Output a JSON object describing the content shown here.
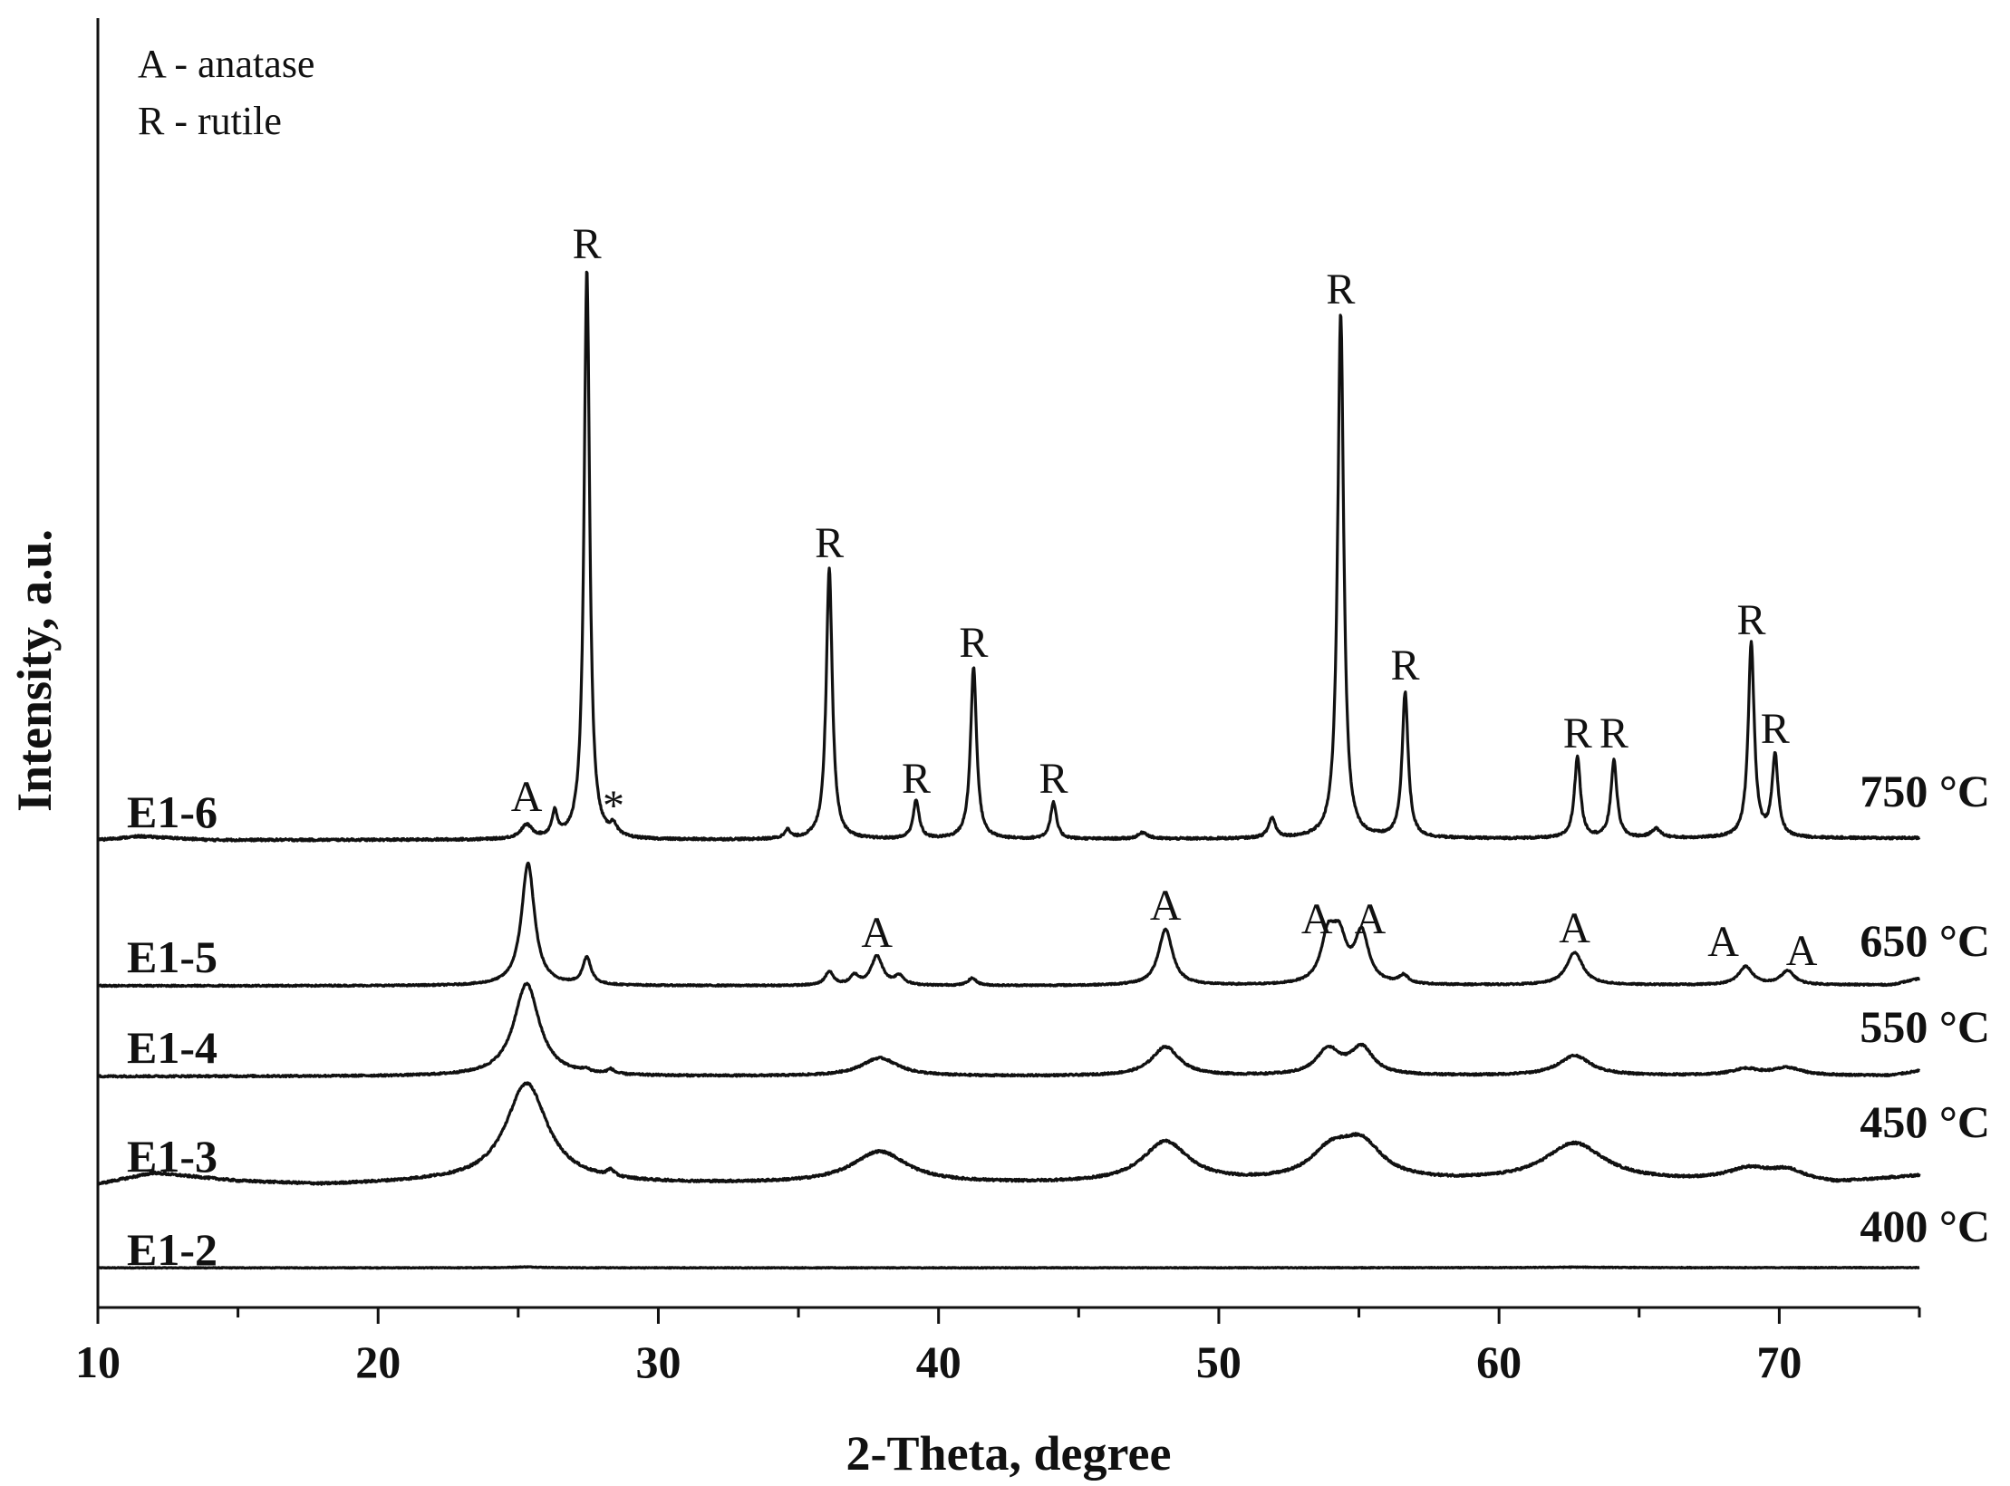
{
  "chart_data": {
    "type": "line",
    "xlabel": "2-Theta, degree",
    "ylabel": "Intensity, a.u.",
    "xlim": [
      10,
      75
    ],
    "xticks": [
      "10",
      "20",
      "30",
      "40",
      "50",
      "60",
      "70"
    ],
    "yticks_shown": false,
    "grid": false,
    "legend": [
      "A - anatase",
      "R - rutile"
    ],
    "legend_position": "top-left",
    "series": [
      {
        "name": "E1-2",
        "temperature": "400 °C",
        "baseline": 0.0,
        "noise": 0.004,
        "background": [
          [
            10,
            0.008
          ],
          [
            40,
            0.008
          ],
          [
            75,
            0.01
          ]
        ],
        "peaks": [
          [
            25.3,
            0.01,
            0.6
          ],
          [
            62.7,
            0.006,
            1.2
          ]
        ]
      },
      {
        "name": "E1-3",
        "temperature": "450 °C",
        "baseline": 0.9,
        "noise": 0.012,
        "background": [
          [
            10,
            0.03
          ],
          [
            12,
            0.15
          ],
          [
            15,
            0.06
          ],
          [
            18,
            0.02
          ],
          [
            22,
            0.05
          ],
          [
            30,
            0.03
          ],
          [
            45,
            0.03
          ],
          [
            60,
            0.05
          ],
          [
            68,
            0.05
          ],
          [
            72,
            0.03
          ],
          [
            75,
            0.12
          ]
        ],
        "peaks": [
          [
            25.3,
            1.1,
            0.9
          ],
          [
            28.3,
            0.07,
            0.15
          ],
          [
            37.9,
            0.35,
            1.2
          ],
          [
            48.1,
            0.45,
            1.0
          ],
          [
            54.0,
            0.3,
            0.9
          ],
          [
            55.1,
            0.38,
            0.9
          ],
          [
            62.7,
            0.42,
            1.3
          ],
          [
            68.9,
            0.13,
            0.9
          ],
          [
            70.3,
            0.12,
            0.8
          ]
        ]
      },
      {
        "name": "E1-4",
        "temperature": "550 °C",
        "baseline": 2.1,
        "noise": 0.01,
        "background": [
          [
            10,
            0.02
          ],
          [
            40,
            0.02
          ],
          [
            74,
            0.03
          ],
          [
            75,
            0.08
          ]
        ],
        "peaks": [
          [
            25.3,
            1.02,
            0.55
          ],
          [
            27.4,
            0.03,
            0.2
          ],
          [
            28.3,
            0.05,
            0.15
          ],
          [
            37.9,
            0.2,
            0.8
          ],
          [
            48.1,
            0.32,
            0.6
          ],
          [
            53.9,
            0.28,
            0.5
          ],
          [
            55.1,
            0.3,
            0.5
          ],
          [
            62.7,
            0.22,
            0.7
          ],
          [
            68.8,
            0.07,
            0.6
          ],
          [
            70.3,
            0.08,
            0.6
          ]
        ]
      },
      {
        "name": "E1-5",
        "temperature": "650 °C",
        "baseline": 3.1,
        "noise": 0.008,
        "background": [
          [
            10,
            0.02
          ],
          [
            40,
            0.02
          ],
          [
            74,
            0.03
          ],
          [
            75,
            0.1
          ]
        ],
        "peaks": [
          [
            25.35,
            1.35,
            0.28
          ],
          [
            27.45,
            0.3,
            0.18
          ],
          [
            36.1,
            0.15,
            0.18
          ],
          [
            37.0,
            0.1,
            0.18
          ],
          [
            37.8,
            0.32,
            0.25
          ],
          [
            38.6,
            0.1,
            0.2
          ],
          [
            41.2,
            0.08,
            0.18
          ],
          [
            48.1,
            0.62,
            0.3
          ],
          [
            53.9,
            0.5,
            0.3
          ],
          [
            54.3,
            0.45,
            0.3
          ],
          [
            55.1,
            0.55,
            0.3
          ],
          [
            56.6,
            0.09,
            0.2
          ],
          [
            62.7,
            0.36,
            0.35
          ],
          [
            68.8,
            0.2,
            0.3
          ],
          [
            70.3,
            0.15,
            0.3
          ]
        ]
      },
      {
        "name": "E1-6",
        "temperature": "750 °C",
        "baseline": 4.7,
        "noise": 0.012,
        "background": [
          [
            10,
            0.03
          ],
          [
            11.5,
            0.07
          ],
          [
            14,
            0.03
          ],
          [
            30,
            0.03
          ],
          [
            50,
            0.04
          ],
          [
            75,
            0.05
          ]
        ],
        "peaks": [
          [
            25.3,
            0.15,
            0.25
          ],
          [
            26.3,
            0.27,
            0.12
          ],
          [
            27.45,
            6.3,
            0.12
          ],
          [
            28.4,
            0.12,
            0.15
          ],
          [
            34.6,
            0.1,
            0.12
          ],
          [
            36.1,
            3.0,
            0.13
          ],
          [
            39.2,
            0.42,
            0.13
          ],
          [
            41.25,
            1.9,
            0.13
          ],
          [
            44.1,
            0.4,
            0.13
          ],
          [
            47.3,
            0.07,
            0.2
          ],
          [
            51.9,
            0.22,
            0.15
          ],
          [
            54.35,
            5.8,
            0.13
          ],
          [
            56.65,
            1.6,
            0.13
          ],
          [
            62.8,
            0.9,
            0.13
          ],
          [
            64.1,
            0.85,
            0.13
          ],
          [
            65.6,
            0.1,
            0.2
          ],
          [
            69.0,
            2.15,
            0.13
          ],
          [
            69.85,
            0.9,
            0.13
          ]
        ]
      }
    ],
    "annotations": [
      {
        "text": "A",
        "x": 25.3,
        "y": 5.05
      },
      {
        "text": "R",
        "x": 27.45,
        "y": 11.15
      },
      {
        "text": "*",
        "x": 28.4,
        "y": 4.95
      },
      {
        "text": "R",
        "x": 36.1,
        "y": 7.85
      },
      {
        "text": "R",
        "x": 39.2,
        "y": 5.25
      },
      {
        "text": "R",
        "x": 41.25,
        "y": 6.75
      },
      {
        "text": "R",
        "x": 44.1,
        "y": 5.25
      },
      {
        "text": "R",
        "x": 54.35,
        "y": 10.65
      },
      {
        "text": "R",
        "x": 56.65,
        "y": 6.5
      },
      {
        "text": "R",
        "x": 62.8,
        "y": 5.75
      },
      {
        "text": "R",
        "x": 64.1,
        "y": 5.75
      },
      {
        "text": "R",
        "x": 69.0,
        "y": 7.0
      },
      {
        "text": "R",
        "x": 69.85,
        "y": 5.8
      },
      {
        "text": "A",
        "x": 37.8,
        "y": 3.55
      },
      {
        "text": "A",
        "x": 48.1,
        "y": 3.85
      },
      {
        "text": "A",
        "x": 53.5,
        "y": 3.7
      },
      {
        "text": "A",
        "x": 55.4,
        "y": 3.7
      },
      {
        "text": "A",
        "x": 62.7,
        "y": 3.6
      },
      {
        "text": "A",
        "x": 68.0,
        "y": 3.45
      },
      {
        "text": "A",
        "x": 70.8,
        "y": 3.35
      }
    ]
  }
}
